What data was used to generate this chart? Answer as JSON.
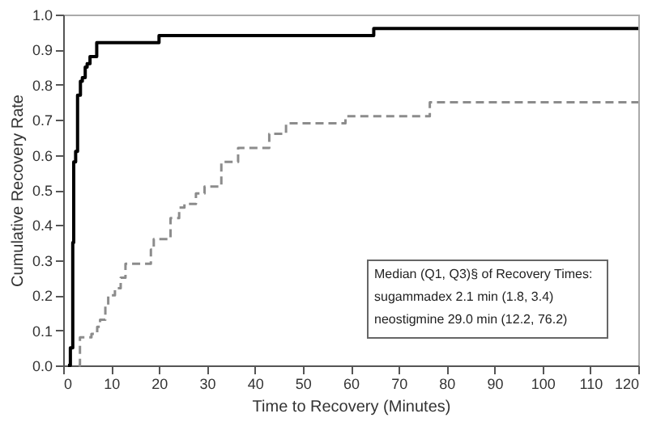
{
  "chart_data": {
    "type": "step",
    "xlabel": "Time to Recovery (Minutes)",
    "ylabel": "Cumulative Recovery Rate",
    "xlim": [
      0,
      120
    ],
    "xticks": [
      0,
      10,
      20,
      30,
      40,
      50,
      60,
      70,
      80,
      90,
      100,
      110,
      120
    ],
    "ylim": [
      0,
      1
    ],
    "yticks": [
      {
        "value": 0,
        "label": "0.0"
      },
      0.1,
      0.2,
      0.3,
      0.4,
      0.5,
      0.6,
      0.7,
      0.8,
      0.9,
      {
        "value": 1,
        "label": "1.0"
      }
    ],
    "grid": false,
    "series": [
      {
        "color": "#000000",
        "line_style": "solid",
        "x": [
          1,
          1.5,
          2,
          2.2,
          2.6,
          3,
          3.6,
          4,
          4.6,
          5,
          5.6,
          7,
          20,
          64.8,
          120
        ],
        "values": [
          0,
          0.05,
          0.35,
          0.58,
          0.61,
          0.77,
          0.81,
          0.82,
          0.85,
          0.86,
          0.88,
          0.92,
          0.94,
          0.96,
          0.96
        ]
      },
      {
        "color": "#8c8c8c",
        "line_style": "dashed",
        "x": [
          3.2,
          3.5,
          5.9,
          7.1,
          7.7,
          8.8,
          9.4,
          10.8,
          12,
          13,
          18.3,
          18.9,
          22.4,
          24.2,
          25.3,
          27.7,
          29.5,
          33,
          36.5,
          43,
          46.5,
          58.9,
          76.5,
          120
        ],
        "values": [
          0,
          0.08,
          0.09,
          0.11,
          0.13,
          0.17,
          0.2,
          0.22,
          0.25,
          0.29,
          0.33,
          0.36,
          0.42,
          0.45,
          0.46,
          0.49,
          0.51,
          0.58,
          0.62,
          0.66,
          0.69,
          0.71,
          0.75,
          0.75
        ]
      }
    ],
    "annotations": [
      "Median (Q1, Q3)§ of Recovery Times:",
      "sugammadex 2.1 min (1.8, 3.4)",
      "neostigmine 29.0 min (12.2, 76.2)"
    ]
  }
}
